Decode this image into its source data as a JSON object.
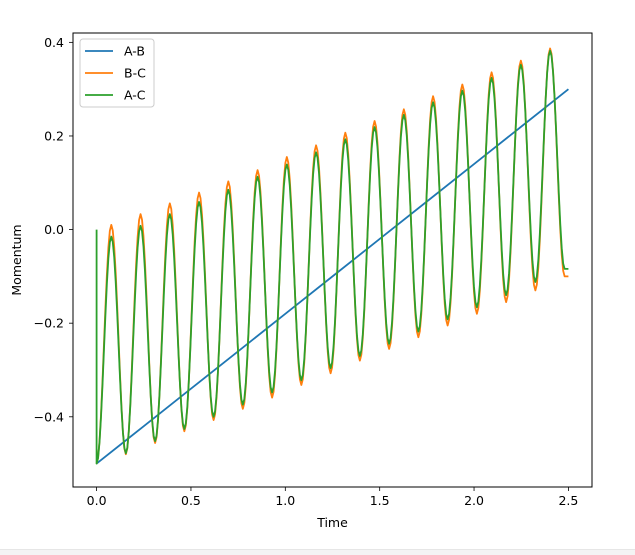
{
  "chart_data": {
    "type": "line",
    "xlabel": "Time",
    "ylabel": "Momentum",
    "xlim": [
      -0.125,
      2.625
    ],
    "ylim": [
      -0.55,
      0.42
    ],
    "x_ticks": [
      0.0,
      0.5,
      1.0,
      1.5,
      2.0,
      2.5
    ],
    "x_tick_labels": [
      "0.0",
      "0.5",
      "1.0",
      "1.5",
      "2.0",
      "2.5"
    ],
    "y_ticks": [
      -0.4,
      -0.2,
      0.0,
      0.2,
      0.4
    ],
    "y_tick_labels": [
      "−0.4",
      "−0.2",
      "0.0",
      "0.2",
      "0.4"
    ],
    "legend_position": "upper-left",
    "grid": false,
    "series": [
      {
        "name": "A-B",
        "color": "#1f77b4",
        "x": [
          0.0,
          0.25,
          0.5,
          0.75,
          1.0,
          1.25,
          1.5,
          1.75,
          2.0,
          2.25,
          2.5
        ],
        "y": [
          -0.5,
          -0.42,
          -0.34,
          -0.26,
          -0.18,
          -0.1,
          -0.02,
          0.06,
          0.14,
          0.22,
          0.3
        ]
      },
      {
        "name": "B-C",
        "color": "#ff7f0e",
        "x": [
          0.0,
          0.078,
          0.155,
          0.233,
          0.31,
          0.388,
          0.465,
          0.543,
          0.62,
          0.698,
          0.775,
          0.853,
          0.93,
          1.008,
          1.085,
          1.163,
          1.24,
          1.318,
          1.395,
          1.473,
          1.55,
          1.628,
          1.705,
          1.783,
          1.86,
          1.938,
          2.015,
          2.093,
          2.17,
          2.248,
          2.325,
          2.403,
          2.48,
          2.5
        ],
        "y": [
          -0.5,
          0.01,
          -0.48,
          0.033,
          -0.456,
          0.056,
          -0.431,
          0.079,
          -0.407,
          0.103,
          -0.383,
          0.127,
          -0.359,
          0.155,
          -0.332,
          0.18,
          -0.307,
          0.207,
          -0.28,
          0.232,
          -0.255,
          0.257,
          -0.23,
          0.285,
          -0.205,
          0.31,
          -0.18,
          0.336,
          -0.155,
          0.361,
          -0.13,
          0.387,
          -0.1,
          -0.1
        ]
      },
      {
        "name": "A-C",
        "color": "#2ca02c",
        "x": [
          0.0,
          0.0,
          0.078,
          0.155,
          0.233,
          0.31,
          0.388,
          0.465,
          0.543,
          0.62,
          0.698,
          0.775,
          0.853,
          0.93,
          1.008,
          1.085,
          1.163,
          1.24,
          1.318,
          1.395,
          1.473,
          1.55,
          1.628,
          1.705,
          1.783,
          1.86,
          1.938,
          2.015,
          2.093,
          2.17,
          2.248,
          2.325,
          2.403,
          2.48,
          2.5
        ],
        "y": [
          0.0,
          -0.5,
          -0.015,
          -0.478,
          0.008,
          -0.452,
          0.033,
          -0.426,
          0.059,
          -0.4,
          0.085,
          -0.374,
          0.113,
          -0.348,
          0.139,
          -0.322,
          0.165,
          -0.296,
          0.193,
          -0.27,
          0.219,
          -0.244,
          0.245,
          -0.218,
          0.272,
          -0.192,
          0.297,
          -0.166,
          0.324,
          -0.14,
          0.352,
          -0.112,
          0.382,
          -0.084,
          -0.084
        ]
      }
    ]
  }
}
